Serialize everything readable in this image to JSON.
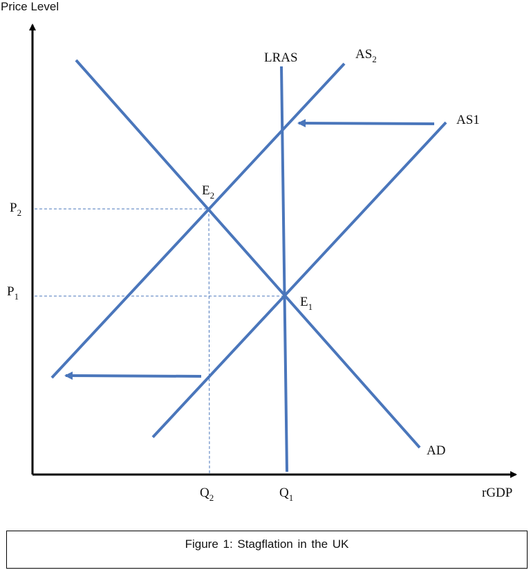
{
  "axes": {
    "y_label": "Price Level",
    "x_label": "rGDP"
  },
  "curves": {
    "lras": "LRAS",
    "as2": {
      "base": "AS",
      "sub": "2"
    },
    "as1": {
      "base": "AS",
      "sub": "1"
    },
    "ad": "AD"
  },
  "points": {
    "e1": {
      "base": "E",
      "sub": "1"
    },
    "e2": {
      "base": "E",
      "sub": "2"
    }
  },
  "levels": {
    "p1": {
      "base": "P",
      "sub": "1"
    },
    "p2": {
      "base": "P",
      "sub": "2"
    },
    "q1": {
      "base": "Q",
      "sub": "1"
    },
    "q2": {
      "base": "Q",
      "sub": "2"
    }
  },
  "colors": {
    "curve": "#4a76bb",
    "axis": "#000000"
  },
  "caption": "Figure 1: Stagflation in the UK"
}
